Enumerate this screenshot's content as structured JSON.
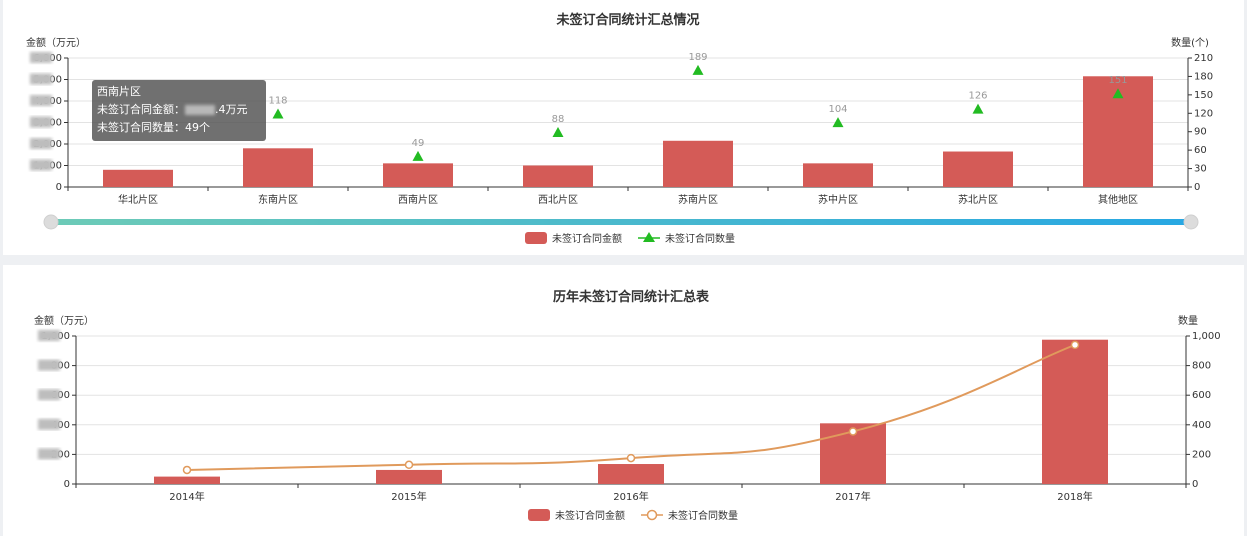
{
  "chart_data": [
    {
      "type": "bar",
      "title": "未签订合同统计汇总情况",
      "ylabel_left": "金额（万元）",
      "ylabel_right": "数量(个)",
      "categories": [
        "华北片区",
        "东南片区",
        "西南片区",
        "西北片区",
        "苏南片区",
        "苏中片区",
        "苏北片区",
        "其他地区"
      ],
      "series": [
        {
          "name": "未签订合同金额",
          "type": "bar",
          "axis": "left",
          "values": [
            800,
            1800,
            1100,
            1000,
            2150,
            1100,
            1650,
            5150
          ]
        },
        {
          "name": "未签订合同数量",
          "type": "scatter",
          "axis": "right",
          "marker": "triangle",
          "values": [
            null,
            118,
            49,
            88,
            189,
            104,
            126,
            151
          ]
        }
      ],
      "ylim_left": [
        0,
        6000
      ],
      "yticks_left": [
        "0",
        "1,000",
        "2,000",
        "3,000",
        "4,000",
        "5,000",
        "6,000"
      ],
      "ylim_right": [
        0,
        210
      ],
      "yticks_right": [
        "0",
        "30",
        "60",
        "90",
        "120",
        "150",
        "180",
        "210"
      ],
      "colors": {
        "bar": "#d45b57",
        "marker": "#22bb22"
      },
      "legend": "bottom-center",
      "grid": true,
      "datazoom": {
        "start": 0,
        "end": 1,
        "colors": [
          "#6dcbb7",
          "#27a7e3"
        ]
      },
      "tooltip": {
        "title": "西南片区",
        "amount_label": "未签订合同金额：",
        "amount_suffix": ".4万元",
        "count_text": "未签订合同数量：49个"
      }
    },
    {
      "type": "bar",
      "title": "历年未签订合同统计汇总表",
      "ylabel_left": "金额（万元）",
      "ylabel_right": "数量",
      "categories": [
        "2014年",
        "2015年",
        "2016年",
        "2017年",
        "2018年"
      ],
      "series": [
        {
          "name": "未签订合同金额",
          "type": "bar",
          "axis": "left",
          "values": [
            50,
            95,
            135,
            410,
            975
          ]
        },
        {
          "name": "未签订合同数量",
          "type": "line",
          "axis": "right",
          "smooth": true,
          "values": [
            95,
            130,
            175,
            355,
            940
          ]
        }
      ],
      "ylim_left": [
        0,
        1000
      ],
      "yticks_left": [
        "0",
        "200",
        "400",
        "600",
        "800",
        "1,000"
      ],
      "ylim_right": [
        0,
        1000
      ],
      "yticks_right": [
        "0",
        "200",
        "400",
        "600",
        "800",
        "1,000"
      ],
      "colors": {
        "bar": "#d45b57",
        "line": "#e09a5c"
      },
      "legend": "bottom-center",
      "grid": true
    }
  ]
}
